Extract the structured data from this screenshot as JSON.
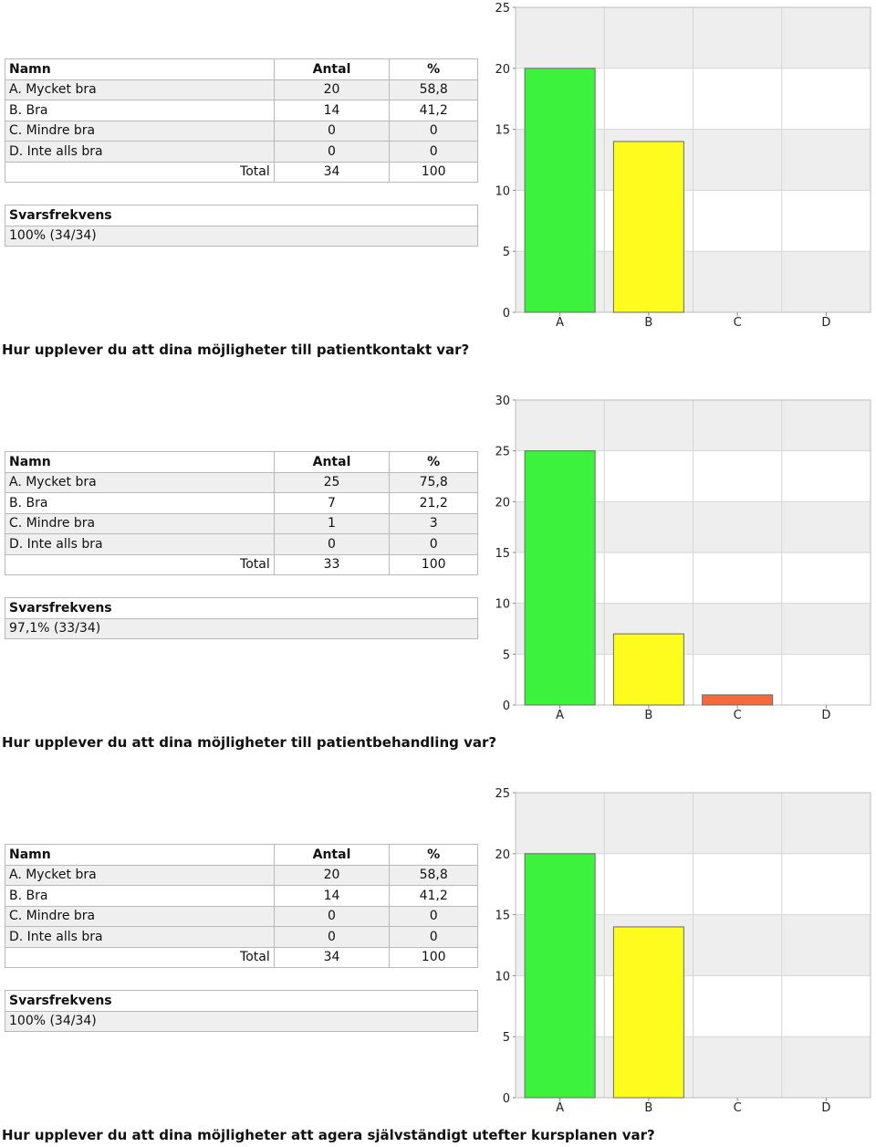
{
  "headers": {
    "name": "Namn",
    "count": "Antal",
    "percent": "%"
  },
  "total_label": "Total",
  "response_rate_label": "Svarsfrekvens",
  "colors": {
    "A": "#3cf23c",
    "B": "#fefc1e",
    "C": "#f56a3a",
    "D": "#3fa9f5",
    "grid_shade": "#eeeeee",
    "axis": "#999999"
  },
  "sections": [
    {
      "rows": [
        {
          "name": "A. Mycket bra",
          "count": "20",
          "percent": "58,8"
        },
        {
          "name": "B. Bra",
          "count": "14",
          "percent": "41,2"
        },
        {
          "name": "C. Mindre bra",
          "count": "0",
          "percent": "0"
        },
        {
          "name": "D. Inte alls bra",
          "count": "0",
          "percent": "0"
        }
      ],
      "total_count": "34",
      "total_percent": "100",
      "response_rate": "100% (34/34)",
      "question": "Hur upplever du att dina möjligheter till patientkontakt var?"
    },
    {
      "rows": [
        {
          "name": "A. Mycket bra",
          "count": "25",
          "percent": "75,8"
        },
        {
          "name": "B. Bra",
          "count": "7",
          "percent": "21,2"
        },
        {
          "name": "C. Mindre bra",
          "count": "1",
          "percent": "3"
        },
        {
          "name": "D. Inte alls bra",
          "count": "0",
          "percent": "0"
        }
      ],
      "total_count": "33",
      "total_percent": "100",
      "response_rate": "97,1% (33/34)",
      "question": "Hur upplever du att dina möjligheter till patientbehandling var?"
    },
    {
      "rows": [
        {
          "name": "A. Mycket bra",
          "count": "20",
          "percent": "58,8"
        },
        {
          "name": "B. Bra",
          "count": "14",
          "percent": "41,2"
        },
        {
          "name": "C. Mindre bra",
          "count": "0",
          "percent": "0"
        },
        {
          "name": "D. Inte alls bra",
          "count": "0",
          "percent": "0"
        }
      ],
      "total_count": "34",
      "total_percent": "100",
      "response_rate": "100% (34/34)",
      "question": "Hur upplever du att dina möjligheter att agera självständigt utefter kursplanen var?"
    }
  ],
  "chart_data": [
    {
      "type": "bar",
      "categories": [
        "A",
        "B",
        "C",
        "D"
      ],
      "values": [
        20,
        14,
        0,
        0
      ],
      "ylim": [
        0,
        25
      ],
      "yticks": [
        0,
        5,
        10,
        15,
        20,
        25
      ],
      "grid": true
    },
    {
      "type": "bar",
      "categories": [
        "A",
        "B",
        "C",
        "D"
      ],
      "values": [
        25,
        7,
        1,
        0
      ],
      "ylim": [
        0,
        30
      ],
      "yticks": [
        0,
        5,
        10,
        15,
        20,
        25,
        30
      ],
      "grid": true
    },
    {
      "type": "bar",
      "categories": [
        "A",
        "B",
        "C",
        "D"
      ],
      "values": [
        20,
        14,
        0,
        0
      ],
      "ylim": [
        0,
        25
      ],
      "yticks": [
        0,
        5,
        10,
        15,
        20,
        25
      ],
      "grid": true
    }
  ]
}
